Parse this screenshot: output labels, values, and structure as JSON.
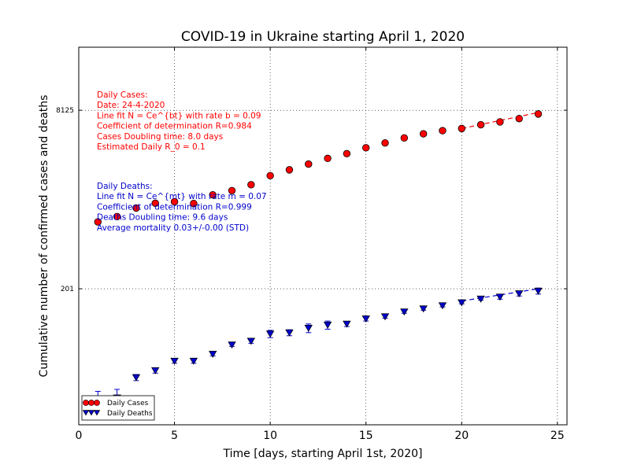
{
  "chart_data": {
    "type": "scatter",
    "title": "COVID-19 in Ukraine starting April 1, 2020",
    "xlabel": "Time [days, starting April 1st, 2020]",
    "ylabel": "Cumulative number of confirmed cases and deaths",
    "xlim": [
      0,
      25.5
    ],
    "x_ticks": [
      0,
      5,
      10,
      15,
      20,
      25
    ],
    "y_scale": "log",
    "ylim": [
      12,
      30000
    ],
    "y_ticks": [
      201,
      8125
    ],
    "grid": true,
    "legend_position": "lower-left",
    "series": [
      {
        "name": "Daily Cases",
        "color": "#ff0000",
        "marker": "circle",
        "x": [
          1,
          2,
          3,
          4,
          5,
          6,
          7,
          8,
          9,
          10,
          11,
          12,
          13,
          14,
          15,
          16,
          17,
          18,
          19,
          20,
          21,
          22,
          23,
          24
        ],
        "y": [
          804,
          897,
          1072,
          1183,
          1220,
          1177,
          1408,
          1537,
          1736,
          2094,
          2364,
          2662,
          2996,
          3304,
          3734,
          4128,
          4579,
          4987,
          5321,
          5563,
          6015,
          6383,
          6833,
          7520
        ]
      },
      {
        "name": "Daily Deaths",
        "color": "#0000cc",
        "marker": "triangle-down",
        "x": [
          1,
          2,
          3,
          4,
          5,
          6,
          7,
          8,
          9,
          10,
          11,
          12,
          13,
          14,
          15,
          16,
          17,
          18,
          19,
          20,
          21,
          22,
          23,
          24
        ],
        "y": [
          20,
          21,
          32,
          37,
          45,
          45,
          52,
          63,
          68,
          79,
          81,
          89,
          95,
          97,
          108,
          113,
          125,
          133,
          142,
          151,
          163,
          170,
          182,
          192
        ],
        "y_error": [
          4,
          4,
          2,
          2,
          2,
          2,
          2,
          2,
          3,
          6,
          5,
          8,
          8,
          5,
          5,
          4,
          4,
          4,
          4,
          4,
          4,
          8,
          9,
          12
        ]
      }
    ],
    "fit_lines": [
      {
        "series": "Daily Cases",
        "color": "#ff0000",
        "x": [
          20,
          24
        ],
        "y": [
          5567,
          7750
        ]
      },
      {
        "series": "Daily Deaths",
        "color": "#0000cc",
        "x": [
          20,
          24
        ],
        "y": [
          156,
          201
        ]
      }
    ],
    "annotations": {
      "cases": {
        "color": "#ff0000",
        "lines": [
          "Daily Cases:",
          "Date: 24-4-2020",
          "Line fit N = Ce^{bt} with rate b = 0.09",
          "Coefficient of determination R=0.984",
          "Cases Doubling time: 8.0 days",
          "Estimated Daily R_0 = 0.1"
        ]
      },
      "deaths": {
        "color": "#0000cc",
        "lines": [
          "Daily Deaths:",
          "Line fit N = Ce^{mt} with rate m = 0.07",
          "Coefficient of determination R=0.999",
          "Deaths Doubling time: 9.6 days",
          "Average mortality 0.03+/-0.00 (STD)"
        ]
      }
    }
  }
}
